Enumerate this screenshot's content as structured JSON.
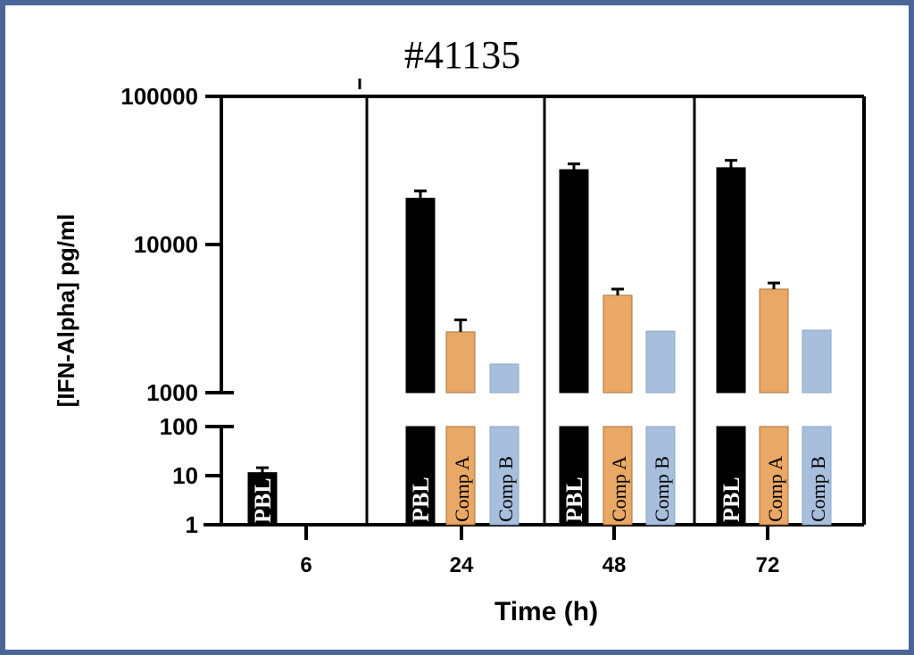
{
  "chart_data": {
    "type": "bar",
    "title": "#41135",
    "xlabel": "Time (h)",
    "ylabel": "[IFN-Alpha] pg/ml",
    "yscale": "log",
    "y_axis_break": [
      100,
      1000
    ],
    "ylim": [
      1,
      100000
    ],
    "yticks_lower": [
      "1",
      "10",
      "100"
    ],
    "yticks_upper": [
      "1000",
      "10000",
      "100000"
    ],
    "categories": [
      "6",
      "24",
      "48",
      "72"
    ],
    "colors": {
      "PBL": "#000000",
      "Comp A": "#e9a865",
      "Comp B": "#a7bedc",
      "frame": "#4a6699"
    },
    "series": [
      {
        "name": "PBL",
        "label": "PBL",
        "values": [
          11.5,
          20500,
          32000,
          33000
        ],
        "error": [
          14.5,
          23000,
          35000,
          37000
        ]
      },
      {
        "name": "Comp A",
        "label": "Comp A",
        "values": [
          null,
          2570,
          4540,
          5000
        ],
        "error": [
          null,
          3100,
          5000,
          5500
        ]
      },
      {
        "name": "Comp B",
        "label": "Comp B",
        "values": [
          null,
          1560,
          2600,
          2640
        ],
        "error": [
          null,
          null,
          null,
          null
        ]
      }
    ]
  }
}
